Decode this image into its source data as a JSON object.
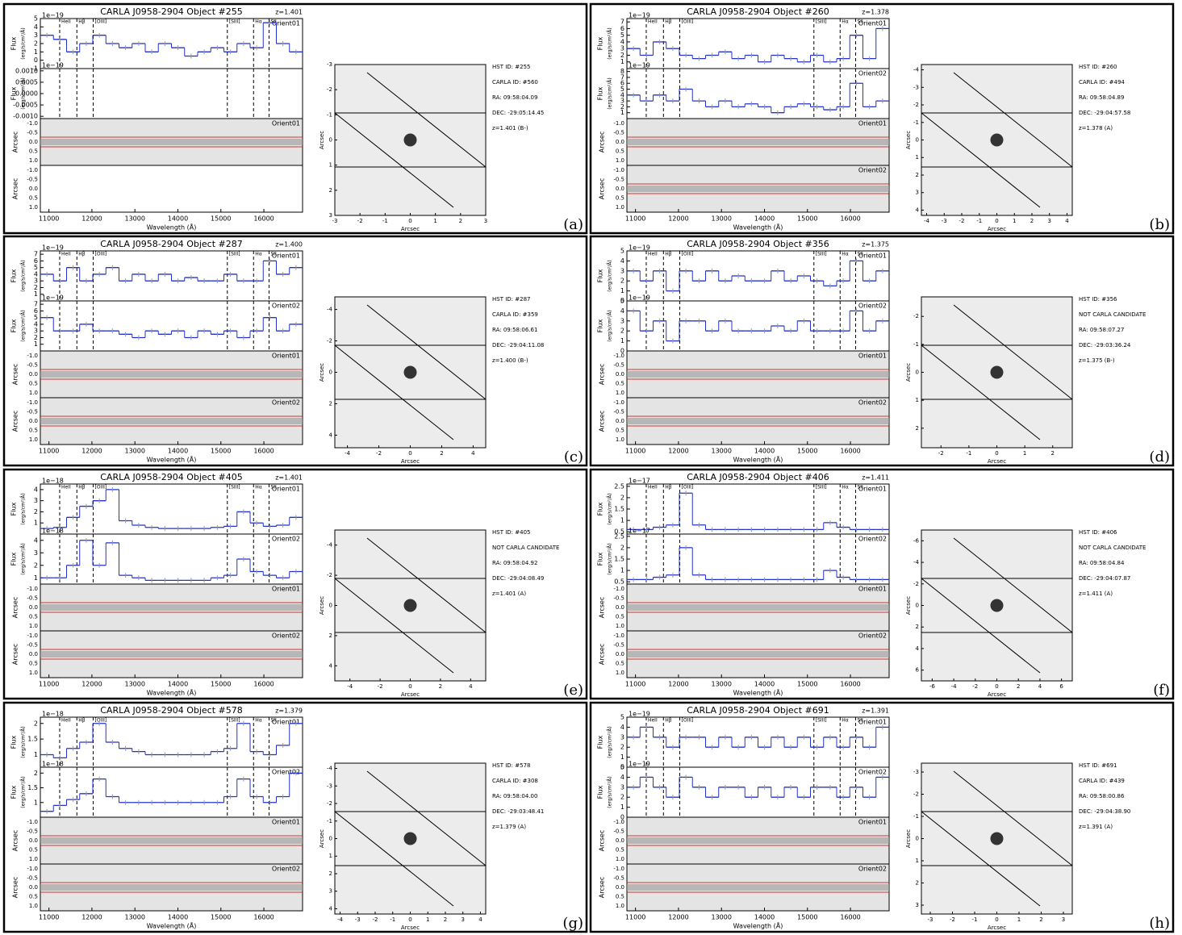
{
  "common": {
    "flux_label": "Flux",
    "flux_unit": "(erg/s/cm²/Å)",
    "arcsec_label": "Arcsec",
    "wavelength_label": "Wavelength (Å)",
    "xlim": [
      10800,
      16900
    ],
    "xticks": [
      11000,
      12000,
      13000,
      14000,
      15000,
      16000
    ],
    "wavelength_bins": [
      10800,
      11105,
      11410,
      11715,
      12020,
      12325,
      12630,
      12935,
      13240,
      13545,
      13850,
      14155,
      14460,
      14765,
      15070,
      15375,
      15680,
      15985,
      16290,
      16595,
      16900
    ],
    "emission_lines": [
      {
        "label": "HeII",
        "wavelength": 11250
      },
      {
        "label": "Hβ",
        "wavelength": 11650
      },
      {
        "label": "[OIII]",
        "wavelength": 12030
      },
      {
        "label": "[SIII]",
        "wavelength": 15150
      },
      {
        "label": "Hα",
        "wavelength": 15760
      },
      {
        "label": "SII",
        "wavelength": 16120
      }
    ],
    "arcsec_ticks": [
      "-1.0",
      "-0.5",
      "0.0",
      "0.5",
      "1.0"
    ]
  },
  "panels": [
    {
      "label": "(a)",
      "title": "CARLA J0958-2904 Object #255",
      "redshift": "z=1.401",
      "scale": "1e−19",
      "info": [
        "HST ID: #255",
        "CARLA ID: #560",
        "RA: 09:58:04.09",
        "DEC: -29:05:14.45",
        "z=1.401 (B-)"
      ],
      "spectra": [
        {
          "name": "Orient01",
          "ylim": [
            -1,
            5
          ],
          "yticks": [
            -1,
            0,
            1,
            2,
            3,
            4,
            5
          ],
          "values": [
            3,
            2.5,
            1,
            2,
            3,
            2,
            1.5,
            2,
            1,
            2,
            1.5,
            0.5,
            1,
            1.5,
            1,
            2,
            1.5,
            4.5,
            2,
            1
          ]
        },
        {
          "ylim": [
            -0.0011,
            0.0011
          ],
          "yticks": [
            {
              "value": 0.001,
              "label": "0.0010"
            },
            {
              "value": 0.0005,
              "label": "0.0005"
            },
            {
              "value": 0,
              "label": "0.0000"
            },
            {
              "value": -0.0005,
              "label": "-0.0005"
            },
            {
              "value": -0.001,
              "label": "-0.0010"
            }
          ]
        }
      ],
      "orient_2d": [
        "Orient01"
      ],
      "image_lim": [
        -3,
        3
      ],
      "image_ticks": [
        -3,
        -2,
        -1,
        0,
        1,
        2,
        3
      ]
    },
    {
      "label": "(b)",
      "title": "CARLA J0958-2904 Object #260",
      "redshift": "z=1.378",
      "scale": "1e−19",
      "info": [
        "HST ID: #260",
        "CARLA ID: #494",
        "RA: 09:58:04.89",
        "DEC: -29:04:57.58",
        "z=1.378 (A)"
      ],
      "spectra": [
        {
          "name": "Orient01",
          "ylim": [
            0,
            7.5
          ],
          "yticks": [
            1,
            2,
            3,
            4,
            5,
            6,
            7
          ],
          "values": [
            3,
            2,
            4,
            3,
            2,
            1.5,
            2,
            2.5,
            1.5,
            2,
            1,
            2,
            1.5,
            1,
            2,
            1,
            1.5,
            5,
            1.5,
            6
          ]
        },
        {
          "name": "Orient02",
          "ylim": [
            0,
            8.5
          ],
          "yticks": [
            1,
            2,
            3,
            4,
            5,
            6,
            7,
            8
          ],
          "values": [
            4,
            3,
            4,
            3,
            5,
            3,
            2,
            3,
            2,
            2.5,
            2,
            1,
            2,
            2.5,
            2,
            1.5,
            2,
            6,
            2,
            3
          ]
        }
      ],
      "orient_2d": [
        "Orient01",
        "Orient02"
      ],
      "image_lim": [
        -4.3,
        4.3
      ],
      "image_ticks": [
        -4,
        -3,
        -2,
        -1,
        0,
        1,
        2,
        3,
        4
      ]
    },
    {
      "label": "(c)",
      "title": "CARLA J0958-2904 Object #287",
      "redshift": "z=1.400",
      "scale": "1e−19",
      "info": [
        "HST ID: #287",
        "CARLA ID: #359",
        "RA: 09:58:06.61",
        "DEC: -29:04:11.08",
        "z=1.400 (B-)"
      ],
      "spectra": [
        {
          "name": "Orient01",
          "ylim": [
            0,
            7.5
          ],
          "yticks": [
            1,
            2,
            3,
            4,
            5,
            6,
            7
          ],
          "values": [
            4,
            3,
            5,
            3,
            4,
            5,
            3,
            4,
            3,
            4,
            3,
            3.5,
            3,
            3,
            4,
            3,
            3,
            6,
            4,
            5
          ]
        },
        {
          "name": "Orient02",
          "ylim": [
            0,
            7.5
          ],
          "yticks": [
            1,
            2,
            3,
            4,
            5,
            6,
            7
          ],
          "values": [
            5,
            3,
            3,
            4,
            3,
            3,
            2.5,
            2,
            3,
            2.5,
            3,
            2,
            3,
            2.5,
            3,
            2,
            3,
            5,
            3,
            4
          ]
        }
      ],
      "orient_2d": [
        "Orient01",
        "Orient02"
      ],
      "image_lim": [
        -4.8,
        4.8
      ],
      "image_ticks": [
        -4,
        -2,
        0,
        2,
        4
      ]
    },
    {
      "label": "(d)",
      "title": "CARLA J0958-2904 Object #356",
      "redshift": "z=1.375",
      "scale": "1e−19",
      "info": [
        "HST ID: #356",
        "NOT CARLA CANDIDATE",
        "RA: 09:58:07.27",
        "DEC: -29:03:36.24",
        "z=1.375 (B-)"
      ],
      "spectra": [
        {
          "name": "Orient01",
          "ylim": [
            0,
            5
          ],
          "yticks": [
            0,
            1,
            2,
            3,
            4,
            5
          ],
          "values": [
            3,
            2,
            3,
            1,
            3,
            2,
            3,
            2,
            2.5,
            2,
            2,
            3,
            2,
            2.5,
            2,
            1.5,
            2,
            4,
            2,
            3
          ]
        },
        {
          "name": "Orient02",
          "ylim": [
            0,
            5
          ],
          "yticks": [
            0,
            1,
            2,
            3,
            4,
            5
          ],
          "values": [
            4,
            2,
            3,
            1,
            3,
            3,
            2,
            3,
            2,
            2,
            2,
            2.5,
            2,
            3,
            2,
            2,
            2,
            4,
            2,
            3
          ]
        }
      ],
      "orient_2d": [
        "Orient01",
        "Orient02"
      ],
      "image_lim": [
        -2.7,
        2.7
      ],
      "image_ticks": [
        -2,
        -1,
        0,
        1,
        2
      ]
    },
    {
      "label": "(e)",
      "title": "CARLA J0958-2904 Object #405",
      "redshift": "z=1.401",
      "scale": "1e−18",
      "info": [
        "HST ID: #405",
        "NOT CARLA CANDIDATE",
        "RA: 09:58:04.92",
        "DEC: -29:04:08.49",
        "z=1.401 (A)"
      ],
      "spectra": [
        {
          "name": "Orient01",
          "ylim": [
            0,
            4.5
          ],
          "yticks": [
            1,
            2,
            3,
            4
          ],
          "values": [
            0.5,
            0.6,
            1.5,
            2.5,
            3,
            4,
            1.2,
            0.8,
            0.6,
            0.5,
            0.5,
            0.5,
            0.5,
            0.6,
            0.7,
            2,
            1,
            0.7,
            0.8,
            1.5
          ]
        },
        {
          "name": "Orient02",
          "ylim": [
            0.5,
            4.5
          ],
          "yticks": [
            1,
            2,
            3,
            4
          ],
          "values": [
            1,
            1,
            2,
            4,
            2,
            3.8,
            1.2,
            1,
            0.8,
            0.8,
            0.8,
            0.8,
            0.8,
            1,
            1.2,
            2.5,
            1.5,
            1.2,
            1,
            1.5
          ]
        }
      ],
      "orient_2d": [
        "Orient01",
        "Orient02"
      ],
      "image_lim": [
        -5,
        5
      ],
      "image_ticks": [
        -4,
        -2,
        0,
        2,
        4
      ]
    },
    {
      "label": "(f)",
      "title": "CARLA J0958-2904 Object #406",
      "redshift": "z=1.411",
      "scale": "1e−17",
      "info": [
        "HST ID: #406",
        "NOT CARLA CANDIDATE",
        "RA: 09:58:04.84",
        "DEC: -29:04:07.87",
        "z=1.411 (A)"
      ],
      "spectra": [
        {
          "name": "Orient01",
          "ylim": [
            0.4,
            2.6
          ],
          "yticks": [
            0.5,
            1,
            1.5,
            2,
            2.5
          ],
          "values": [
            0.6,
            0.6,
            0.7,
            0.8,
            2.2,
            0.8,
            0.6,
            0.6,
            0.6,
            0.6,
            0.6,
            0.6,
            0.6,
            0.6,
            0.6,
            0.9,
            0.7,
            0.6,
            0.6,
            0.6
          ]
        },
        {
          "name": "Orient02",
          "ylim": [
            0.4,
            2.6
          ],
          "yticks": [
            0.5,
            1,
            1.5,
            2,
            2.5
          ],
          "values": [
            0.6,
            0.6,
            0.7,
            0.8,
            2,
            0.8,
            0.6,
            0.6,
            0.6,
            0.6,
            0.6,
            0.6,
            0.6,
            0.6,
            0.6,
            1,
            0.7,
            0.6,
            0.6,
            0.6
          ]
        }
      ],
      "orient_2d": [
        "Orient01",
        "Orient02"
      ],
      "image_lim": [
        -7,
        7
      ],
      "image_ticks": [
        -6,
        -4,
        -2,
        0,
        2,
        4,
        6
      ]
    },
    {
      "label": "(g)",
      "title": "CARLA J0958-2904 Object #578",
      "redshift": "z=1.379",
      "scale": "1e−18",
      "info": [
        "HST ID: #578",
        "CARLA ID: #308",
        "RA: 09:58:04.00",
        "DEC: -29:03:48.41",
        "z=1.379 (A)"
      ],
      "spectra": [
        {
          "name": "Orient01",
          "ylim": [
            0.6,
            2.2
          ],
          "yticks": [
            1,
            1.5,
            2
          ],
          "values": [
            1,
            0.9,
            1.2,
            1.4,
            2,
            1.4,
            1.2,
            1.1,
            1,
            1,
            1,
            1,
            1,
            1.1,
            1.2,
            2,
            1.1,
            1,
            1.3,
            2
          ]
        },
        {
          "name": "Orient02",
          "ylim": [
            0.5,
            2.2
          ],
          "yticks": [
            1,
            1.5,
            2
          ],
          "values": [
            0.7,
            0.9,
            1.1,
            1.3,
            1.8,
            1.2,
            1,
            1,
            1,
            1,
            1,
            1,
            1,
            1,
            1.2,
            1.8,
            1.2,
            1,
            1.2,
            2
          ]
        }
      ],
      "orient_2d": [
        "Orient01",
        "Orient02"
      ],
      "image_lim": [
        -4.3,
        4.3
      ],
      "image_ticks": [
        -4,
        -3,
        -2,
        -1,
        0,
        1,
        2,
        3,
        4
      ]
    },
    {
      "label": "(h)",
      "title": "CARLA J0958-2904 Object #691",
      "redshift": "z=1.391",
      "scale": "1e−19",
      "info": [
        "HST ID: #691",
        "CARLA ID: #439",
        "RA: 09:58:00.86",
        "DEC: -29:04:38.90",
        "z=1.391 (A)"
      ],
      "spectra": [
        {
          "name": "Orient01",
          "ylim": [
            0,
            5
          ],
          "yticks": [
            0,
            1,
            2,
            3,
            4,
            5
          ],
          "values": [
            3,
            4,
            3,
            2,
            3,
            3,
            2,
            3,
            2,
            3,
            2,
            3,
            2,
            3,
            2,
            3,
            2,
            3,
            2,
            4
          ]
        },
        {
          "name": "Orient02",
          "ylim": [
            0,
            5
          ],
          "yticks": [
            0,
            1,
            2,
            3,
            4,
            5
          ],
          "values": [
            3,
            4,
            3,
            2,
            4,
            3,
            2,
            3,
            3,
            2,
            3,
            2,
            3,
            2,
            3,
            3,
            2,
            3,
            2,
            4
          ]
        }
      ],
      "orient_2d": [
        "Orient01",
        "Orient02"
      ],
      "image_lim": [
        -3.4,
        3.4
      ],
      "image_ticks": [
        -3,
        -2,
        -1,
        0,
        1,
        2,
        3
      ]
    }
  ]
}
